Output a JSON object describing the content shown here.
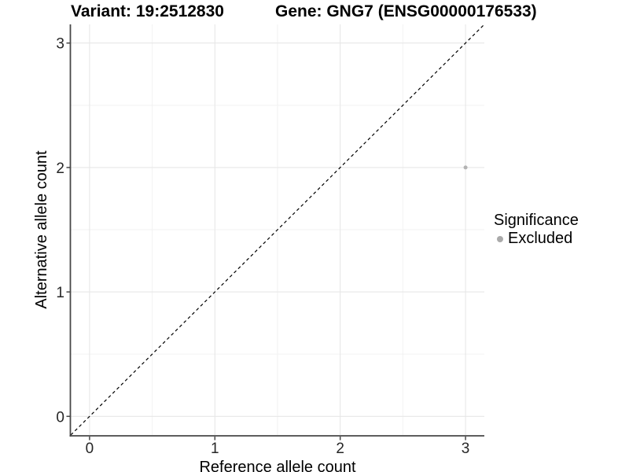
{
  "chart_data": {
    "type": "scatter",
    "title_left": "Variant: 19:2512830",
    "title_right": "Gene: GNG7 (ENSG00000176533)",
    "xlabel": "Reference allele count",
    "ylabel": "Alternative allele count",
    "xlim": [
      -0.15,
      3.15
    ],
    "ylim": [
      -0.15,
      3.15
    ],
    "x_ticks": [
      0,
      1,
      2,
      3
    ],
    "y_ticks": [
      0,
      1,
      2,
      3
    ],
    "x_minor_ticks": [
      0.5,
      1.5,
      2.5
    ],
    "y_minor_ticks": [
      0.5,
      1.5,
      2.5
    ],
    "grid": "major and minor gridlines on white panel",
    "reference_line": {
      "type": "identity y=x",
      "style": "dashed",
      "color": "#000000"
    },
    "series": [
      {
        "name": "Excluded",
        "color": "#b3b3b3",
        "point_radius": 2.5,
        "points": [
          [
            3,
            2
          ]
        ]
      }
    ],
    "legend": {
      "title": "Significance",
      "position": "right",
      "items": [
        {
          "label": "Excluded",
          "color": "#aaaaaa"
        }
      ]
    }
  },
  "colors": {
    "background": "#ffffff",
    "axis_line": "#474747",
    "tick_label": "#262626",
    "title_text": "#000000",
    "grid_major": "#e7e7e7",
    "grid_minor": "#f2f2f2",
    "excluded_point": "#b3b3b3"
  }
}
